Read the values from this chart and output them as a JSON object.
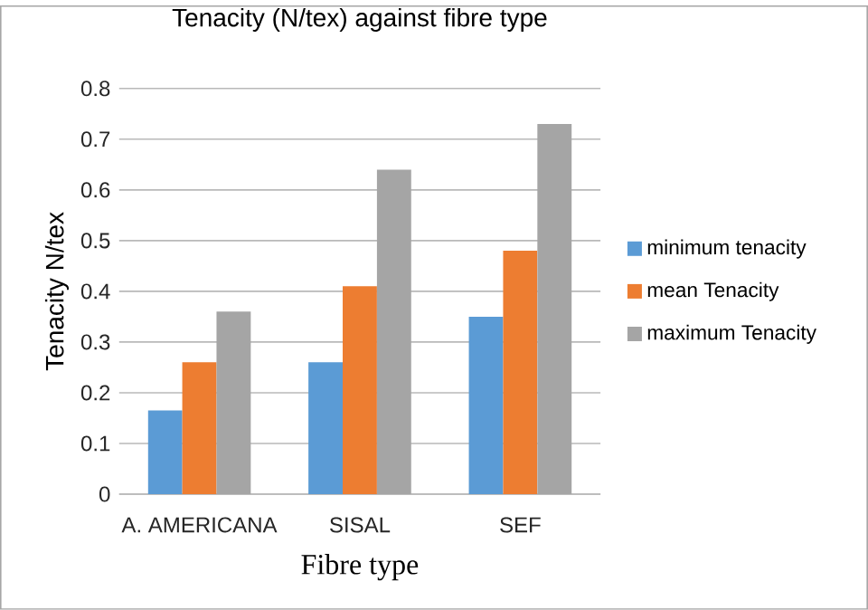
{
  "chart_data": {
    "type": "bar",
    "title": "Tenacity (N/tex) against   fibre type",
    "xlabel": "Fibre type",
    "ylabel": "Tenacity N/tex",
    "categories": [
      "A. AMERICANA",
      "SISAL",
      "SEF"
    ],
    "series": [
      {
        "name": "minimum tenacity",
        "color": "#5b9bd5",
        "values": [
          0.165,
          0.26,
          0.35
        ]
      },
      {
        "name": "mean Tenacity",
        "color": "#ed7d31",
        "values": [
          0.26,
          0.41,
          0.48
        ]
      },
      {
        "name": "maximum Tenacity",
        "color": "#a5a5a5",
        "values": [
          0.36,
          0.64,
          0.73
        ]
      }
    ],
    "ylim": [
      0,
      0.8
    ],
    "yticks": [
      0,
      0.1,
      0.2,
      0.3,
      0.4,
      0.5,
      0.6,
      0.7,
      0.8
    ],
    "grid": "y",
    "legend": "right"
  }
}
